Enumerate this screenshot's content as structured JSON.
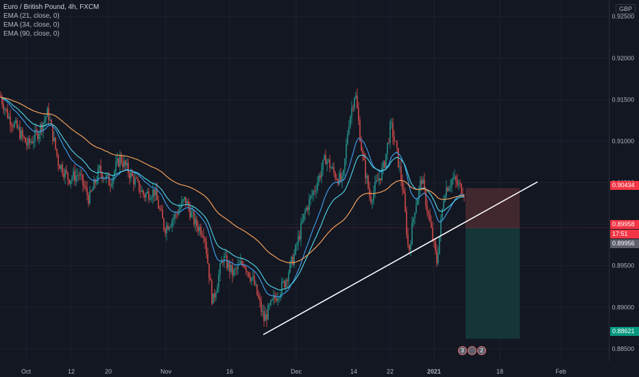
{
  "legend": {
    "title": "Euro / British Pound, 4h, FXCM",
    "ema21": "EMA (21, close, 0)",
    "ema34": "EMA (34, close, 0)",
    "ema90": "EMA (90, close, 0)"
  },
  "currency_badge": "GBP",
  "price_tags": {
    "stop": "0.90434",
    "current": "0.89958",
    "countdown": "17:51",
    "entry": "0.89956",
    "target": "0.88621"
  },
  "event_icons": [
    "3",
    "2"
  ],
  "colors": {
    "background": "#131722",
    "candle_up": "#26a69a",
    "candle_down": "#ef5350",
    "ema21": "#3d9be9",
    "ema34": "#4dd0e1",
    "ema90": "#f7a35c",
    "trendline": "#ffffff",
    "stop_zone": "#4a2a30",
    "target_zone": "#163a3c"
  },
  "chart_data": {
    "type": "candlestick",
    "symbol": "Euro / British Pound",
    "timeframe": "4h",
    "source": "FXCM",
    "y_ticks": [
      "0.92500",
      "0.92000",
      "0.91500",
      "0.91000",
      "0.90500",
      "0.90000",
      "0.89500",
      "0.89000",
      "0.88500"
    ],
    "x_ticks": [
      "Oct",
      "12",
      "20",
      "Nov",
      "16",
      "Dec",
      "14",
      "22",
      "2021",
      "18",
      "Feb"
    ],
    "ylim": [
      0.8835,
      0.927
    ],
    "close_path": [
      [
        0,
        0.9155
      ],
      [
        12,
        0.913
      ],
      [
        25,
        0.9115
      ],
      [
        40,
        0.9095
      ],
      [
        55,
        0.911
      ],
      [
        70,
        0.9135
      ],
      [
        85,
        0.9075
      ],
      [
        100,
        0.9055
      ],
      [
        115,
        0.906
      ],
      [
        130,
        0.903
      ],
      [
        145,
        0.9065
      ],
      [
        160,
        0.905
      ],
      [
        175,
        0.908
      ],
      [
        190,
        0.906
      ],
      [
        210,
        0.9035
      ],
      [
        225,
        0.904
      ],
      [
        240,
        0.8995
      ],
      [
        255,
        0.901
      ],
      [
        270,
        0.903
      ],
      [
        285,
        0.9
      ],
      [
        298,
        0.899
      ],
      [
        310,
        0.8905
      ],
      [
        325,
        0.896
      ],
      [
        340,
        0.894
      ],
      [
        355,
        0.8955
      ],
      [
        370,
        0.893
      ],
      [
        385,
        0.8885
      ],
      [
        400,
        0.891
      ],
      [
        415,
        0.893
      ],
      [
        430,
        0.8965
      ],
      [
        445,
        0.9015
      ],
      [
        460,
        0.9045
      ],
      [
        475,
        0.908
      ],
      [
        488,
        0.906
      ],
      [
        500,
        0.905
      ],
      [
        508,
        0.912
      ],
      [
        518,
        0.916
      ],
      [
        528,
        0.9085
      ],
      [
        540,
        0.903
      ],
      [
        550,
        0.905
      ],
      [
        560,
        0.907
      ],
      [
        570,
        0.912
      ],
      [
        578,
        0.909
      ],
      [
        588,
        0.904
      ],
      [
        596,
        0.8965
      ],
      [
        605,
        0.902
      ],
      [
        615,
        0.9055
      ],
      [
        625,
        0.901
      ],
      [
        637,
        0.8955
      ],
      [
        648,
        0.904
      ],
      [
        660,
        0.9055
      ],
      [
        670,
        0.9045
      ],
      [
        678,
        0.904
      ]
    ],
    "ema90_path": [
      [
        0,
        0.913
      ],
      [
        60,
        0.9115
      ],
      [
        120,
        0.909
      ],
      [
        180,
        0.9065
      ],
      [
        240,
        0.9045
      ],
      [
        290,
        0.903
      ],
      [
        330,
        0.8995
      ],
      [
        370,
        0.897
      ],
      [
        410,
        0.8945
      ],
      [
        450,
        0.8975
      ],
      [
        490,
        0.901
      ],
      [
        530,
        0.9035
      ],
      [
        560,
        0.904
      ],
      [
        600,
        0.905
      ],
      [
        640,
        0.9045
      ],
      [
        678,
        0.9045
      ]
    ],
    "trendline": {
      "from": {
        "day": "Nov 21",
        "price": 0.8867
      },
      "to": {
        "day": "Jan 18",
        "price": 0.9051
      }
    },
    "position": {
      "side": "short",
      "stop": 0.90434,
      "entry": 0.89956,
      "target": 0.88621,
      "current": 0.89958
    }
  }
}
